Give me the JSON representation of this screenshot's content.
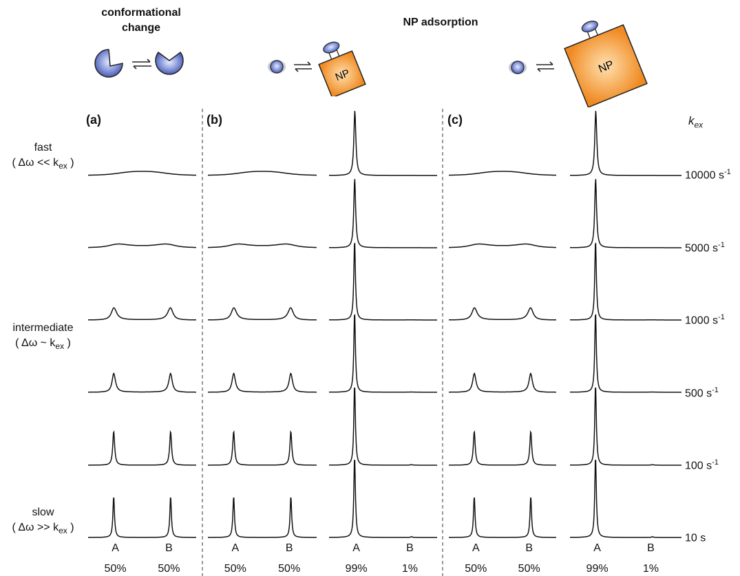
{
  "headers": {
    "conformational": "conformational change",
    "np": "NP adsorption"
  },
  "particle_label": "NP",
  "panels": [
    "(a)",
    "(b)",
    "(c)"
  ],
  "kex_label": "k",
  "kex_sub": "ex",
  "regimes": {
    "fast": {
      "word": "fast",
      "relation": "( Δω << k",
      "sub": "ex",
      "close": " )"
    },
    "intermediate": {
      "word": "intermediate",
      "relation": "( Δω ~ k",
      "sub": "ex",
      "close": " )"
    },
    "slow": {
      "word": "slow",
      "relation": "( Δω >> k",
      "sub": "ex",
      "close": " )"
    }
  },
  "rates": [
    {
      "value": "10000 s",
      "exp": "-1"
    },
    {
      "value": "5000 s",
      "exp": "-1"
    },
    {
      "value": "1000 s",
      "exp": "-1"
    },
    {
      "value": "500 s",
      "exp": "-1"
    },
    {
      "value": "100 s",
      "exp": "-1"
    },
    {
      "value": "10 s",
      "exp": ""
    }
  ],
  "columns": [
    {
      "A": "A",
      "B": "B",
      "pA": "50%",
      "pB": "50%"
    },
    {
      "A": "A",
      "B": "B",
      "pA": "50%",
      "pB": "50%"
    },
    {
      "A": "A",
      "B": "B",
      "pA": "99%",
      "pB": "1%"
    },
    {
      "A": "A",
      "B": "B",
      "pA": "50%",
      "pB": "50%"
    },
    {
      "A": "A",
      "B": "B",
      "pA": "99%",
      "pB": "1%"
    }
  ],
  "colors": {
    "protein": "#5b6fc0",
    "np": "#f08a22",
    "line": "#111111"
  }
}
